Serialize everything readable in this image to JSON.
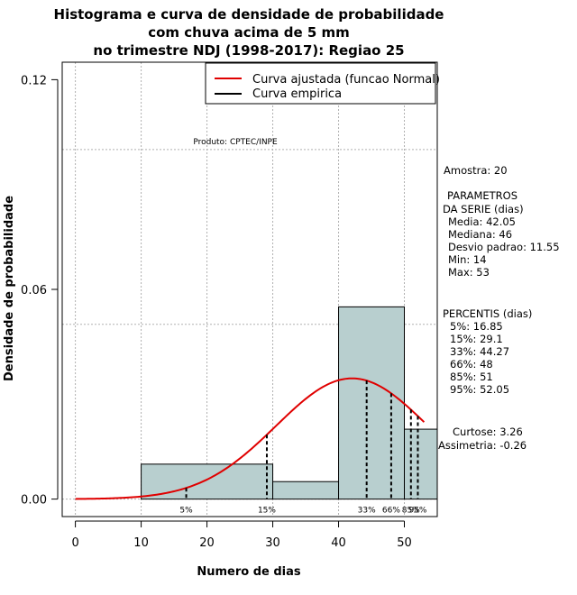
{
  "chart_data": {
    "type": "histogram",
    "title_lines": [
      "Histograma e curva de densidade de probabilidade",
      "com chuva acima de 5 mm",
      "no trimestre NDJ (1998-2017): Regiao 25"
    ],
    "xlabel": "Numero de dias",
    "ylabel": "Densidade de probabilidade",
    "xlim": [
      -2,
      55
    ],
    "ylim": [
      -0.005,
      0.125
    ],
    "x_ticks": [
      0,
      10,
      20,
      30,
      40,
      50
    ],
    "y_ticks": [
      0.0,
      0.06,
      0.12
    ],
    "y_tick_labels": [
      "0.00",
      "0.06",
      "0.12"
    ],
    "grid_x": [
      0,
      10,
      20,
      30,
      40,
      50
    ],
    "grid_y": [
      0.0,
      0.05,
      0.1
    ],
    "bins": [
      {
        "from": 10,
        "to": 30,
        "density": 0.01
      },
      {
        "from": 30,
        "to": 40,
        "density": 0.005
      },
      {
        "from": 40,
        "to": 50,
        "density": 0.055
      },
      {
        "from": 50,
        "to": 55,
        "density": 0.02
      }
    ],
    "bar_color": "#b8cfcf",
    "normal_fit": {
      "mean": 42.05,
      "sd": 11.55,
      "from": 0,
      "to": 53,
      "color": "#e00000"
    },
    "percentile_lines": [
      {
        "label": "5%",
        "x": 16.85
      },
      {
        "label": "15%",
        "x": 29.1
      },
      {
        "label": "33%",
        "x": 44.27
      },
      {
        "label": "66%",
        "x": 48
      },
      {
        "label": "85%",
        "x": 51
      },
      {
        "label": "95%",
        "x": 52.05
      }
    ],
    "legend": {
      "position": "top-right",
      "entries": [
        {
          "label": "Curva ajustada (funcao Normal)",
          "color": "#e00000"
        },
        {
          "label": "Curva empirica",
          "color": "#000000"
        }
      ]
    },
    "annotation": "Produto: CPTEC/INPE"
  },
  "side_panel": {
    "amostra": "Amostra: 20",
    "parametros": [
      "PARAMETROS",
      "DA SERIE (dias)",
      "Media: 42.05",
      "Mediana: 46",
      "Desvio padrao: 11.55",
      "Min: 14",
      "Max: 53"
    ],
    "percentis": [
      "PERCENTIS (dias)",
      "5%: 16.85",
      "15%: 29.1",
      "33%: 44.27",
      "66%: 48",
      "85%: 51",
      "95%: 52.05"
    ],
    "curtose": "Curtose: 3.26",
    "assimetria": "Assimetria: -0.26"
  }
}
